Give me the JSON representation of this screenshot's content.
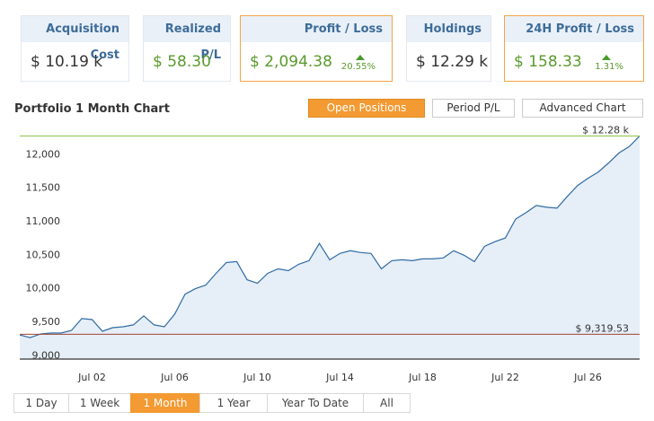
{
  "cards": [
    {
      "title": "Acquisition Cost",
      "value": "$ 10.19 k"
    },
    {
      "title": "Realized P/L",
      "value": "$ 58.30"
    },
    {
      "title": "Profit / Loss",
      "value": "$ 2,094.38",
      "change": "20.55%"
    },
    {
      "title": "Holdings",
      "value": "$ 12.29 k"
    },
    {
      "title": "24H Profit / Loss",
      "value": "$ 158.33",
      "change": "1.31%"
    }
  ],
  "section_title": "Portfolio 1 Month Chart",
  "chart_buttons": [
    "Open Positions",
    "Period P/L",
    "Advanced Chart"
  ],
  "range_buttons": [
    "1 Day",
    "1 Week",
    "1 Month",
    "1 Year",
    "Year To Date",
    "All"
  ],
  "chart_data": {
    "type": "area",
    "categories": [
      null,
      null,
      null,
      null,
      null,
      null,
      null,
      "Jul 02",
      null,
      null,
      null,
      null,
      null,
      null,
      null,
      "Jul 06",
      null,
      null,
      null,
      null,
      null,
      null,
      null,
      "Jul 10",
      null,
      null,
      null,
      null,
      null,
      null,
      null,
      "Jul 14",
      null,
      null,
      null,
      null,
      null,
      null,
      null,
      "Jul 18",
      null,
      null,
      null,
      null,
      null,
      null,
      null,
      "Jul 22",
      null,
      null,
      null,
      null,
      null,
      null,
      null,
      "Jul 26",
      null,
      null,
      null,
      null,
      null
    ],
    "values": [
      9311,
      9270,
      9324,
      9338,
      9338,
      9378,
      9554,
      9540,
      9365,
      9419,
      9432,
      9460,
      9595,
      9460,
      9432,
      9622,
      9919,
      10000,
      10054,
      10230,
      10392,
      10405,
      10135,
      10081,
      10230,
      10297,
      10270,
      10365,
      10419,
      10676,
      10432,
      10527,
      10568,
      10541,
      10527,
      10297,
      10419,
      10432,
      10419,
      10446,
      10446,
      10460,
      10568,
      10500,
      10405,
      10635,
      10703,
      10757,
      11041,
      11135,
      11243,
      11216,
      11203,
      11378,
      11541,
      11649,
      11743,
      11878,
      12027,
      12122,
      12280
    ],
    "color": "#2f6ca4",
    "fill": "#e6eef7",
    "ylim": [
      8950,
      12300
    ],
    "yticks": [
      {
        "value": 9000,
        "label": "9,000"
      },
      {
        "value": 9500,
        "label": "9,500"
      },
      {
        "value": 10000,
        "label": "10,000"
      },
      {
        "value": 10500,
        "label": "10,500"
      },
      {
        "value": 11000,
        "label": "11,000"
      },
      {
        "value": 11500,
        "label": "11,500"
      },
      {
        "value": 12000,
        "label": "12,000"
      }
    ],
    "reference_lines": [
      {
        "value": 12280,
        "label": "$ 12.28 k",
        "color": "#8bc34a"
      },
      {
        "value": 9319.53,
        "label": "$ 9,319.53",
        "color": "#a0443a"
      }
    ]
  }
}
